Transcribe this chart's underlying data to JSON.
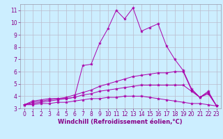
{
  "background_color": "#cceeff",
  "line_color": "#aa00aa",
  "grid_color": "#bbbbcc",
  "xlabel": "Windchill (Refroidissement éolien,°C)",
  "ylabel_ticks": [
    3,
    4,
    5,
    6,
    7,
    8,
    9,
    10,
    11
  ],
  "xlabel_ticks": [
    0,
    1,
    2,
    3,
    4,
    5,
    6,
    7,
    8,
    9,
    10,
    11,
    12,
    13,
    14,
    15,
    16,
    17,
    18,
    19,
    20,
    21,
    22,
    23
  ],
  "ylim": [
    3,
    11.5
  ],
  "xlim": [
    -0.5,
    23.5
  ],
  "series": [
    {
      "x": [
        0,
        1,
        2,
        3,
        4,
        5,
        6,
        7,
        8,
        9,
        10,
        11,
        12,
        13,
        14,
        15,
        16,
        17,
        18,
        19,
        20,
        21,
        22,
        23
      ],
      "y": [
        3.3,
        3.6,
        3.7,
        3.8,
        3.8,
        3.8,
        3.9,
        6.5,
        6.6,
        8.3,
        9.5,
        11.0,
        10.3,
        11.2,
        9.3,
        9.6,
        9.9,
        8.1,
        7.0,
        6.1,
        4.6,
        3.9,
        4.4,
        3.2
      ]
    },
    {
      "x": [
        0,
        1,
        2,
        3,
        4,
        5,
        6,
        7,
        8,
        9,
        10,
        11,
        12,
        13,
        14,
        15,
        16,
        17,
        18,
        19,
        20,
        21,
        22,
        23
      ],
      "y": [
        3.3,
        3.5,
        3.6,
        3.7,
        3.8,
        3.9,
        4.1,
        4.3,
        4.5,
        4.8,
        5.0,
        5.2,
        5.4,
        5.6,
        5.7,
        5.8,
        5.9,
        5.9,
        6.0,
        6.0,
        4.5,
        3.9,
        4.3,
        3.2
      ]
    },
    {
      "x": [
        0,
        1,
        2,
        3,
        4,
        5,
        6,
        7,
        8,
        9,
        10,
        11,
        12,
        13,
        14,
        15,
        16,
        17,
        18,
        19,
        20,
        21,
        22,
        23
      ],
      "y": [
        3.3,
        3.4,
        3.5,
        3.6,
        3.7,
        3.8,
        3.9,
        4.1,
        4.2,
        4.4,
        4.5,
        4.6,
        4.7,
        4.8,
        4.9,
        4.9,
        4.9,
        4.9,
        4.9,
        4.9,
        4.4,
        3.9,
        4.2,
        3.2
      ]
    },
    {
      "x": [
        0,
        1,
        2,
        3,
        4,
        5,
        6,
        7,
        8,
        9,
        10,
        11,
        12,
        13,
        14,
        15,
        16,
        17,
        18,
        19,
        20,
        21,
        22,
        23
      ],
      "y": [
        3.3,
        3.3,
        3.4,
        3.4,
        3.5,
        3.5,
        3.6,
        3.7,
        3.8,
        3.8,
        3.9,
        3.9,
        4.0,
        4.0,
        4.0,
        3.9,
        3.8,
        3.7,
        3.6,
        3.5,
        3.4,
        3.4,
        3.3,
        3.2
      ]
    }
  ],
  "tick_fontsize": 5.5,
  "xlabel_fontsize": 6.0,
  "linewidth": 0.7,
  "markersize": 3.0
}
